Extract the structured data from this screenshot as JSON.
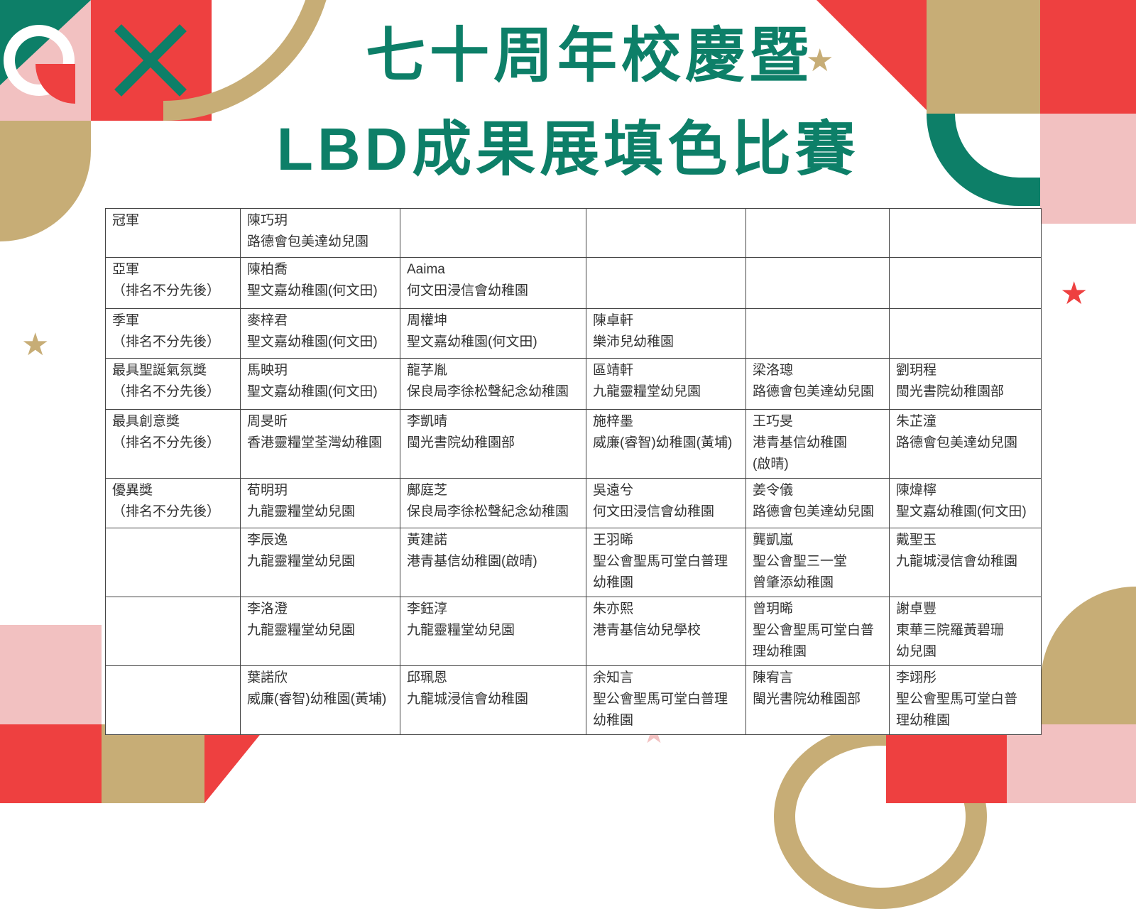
{
  "title": {
    "line1": "七十周年校慶暨",
    "line2": "LBD成果展填色比賽"
  },
  "colors": {
    "green": "#0d7f68",
    "red": "#ee4040",
    "gold": "#c7ad76",
    "pink": "#f2c1c1"
  },
  "rows": [
    {
      "award": "冠軍",
      "cells": [
        "陳巧玥\n路德會包美達幼兒園",
        "",
        "",
        "",
        ""
      ]
    },
    {
      "award": "亞軍\n（排名不分先後）",
      "cells": [
        "陳柏喬\n聖文嘉幼稚園(何文田)",
        "Aaima\n何文田浸信會幼稚園",
        "",
        "",
        ""
      ]
    },
    {
      "award": "季軍\n（排名不分先後）",
      "cells": [
        "麥梓君\n聖文嘉幼稚園(何文田)",
        "周權坤\n聖文嘉幼稚園(何文田)",
        "陳卓軒\n樂沛兒幼稚園",
        "",
        ""
      ]
    },
    {
      "award": "最具聖誕氣氛獎\n（排名不分先後）",
      "cells": [
        "馬映玥\n聖文嘉幼稚園(何文田)",
        "龍芓胤\n保良局李徐松聲紀念幼稚園",
        "區靖軒\n九龍靈糧堂幼兒園",
        "梁洛璁\n路德會包美達幼兒園",
        "劉玥程\n閩光書院幼稚園部"
      ]
    },
    {
      "award": "最具創意獎\n（排名不分先後）",
      "cells": [
        "周旻昕\n香港靈糧堂荃灣幼稚園",
        "李凱晴\n閩光書院幼稚園部",
        "施梓墨\n威廉(睿智)幼稚園(黃埔)",
        "王巧旻\n港青基信幼稚園\n(啟晴)",
        "朱芷潼\n路德會包美達幼兒園"
      ]
    },
    {
      "award": "優異獎\n（排名不分先後）",
      "cells": [
        "荀明玥\n九龍靈糧堂幼兒園",
        "鄺庭芝\n保良局李徐松聲紀念幼稚園",
        "吳遠兮\n何文田浸信會幼稚園",
        "姜令儀\n路德會包美達幼兒園",
        "陳煒檸\n聖文嘉幼稚園(何文田)"
      ]
    },
    {
      "award": "",
      "cells": [
        "李辰逸\n九龍靈糧堂幼兒園",
        "黃建諾\n港青基信幼稚園(啟晴)",
        "王羽晞\n聖公會聖馬可堂白普理\n幼稚園",
        "龔凱嵐\n聖公會聖三一堂\n曾肇添幼稚園",
        "戴聖玉\n九龍城浸信會幼稚園"
      ]
    },
    {
      "award": "",
      "cells": [
        "李洛澄\n九龍靈糧堂幼兒園",
        "李鈺淳\n九龍靈糧堂幼兒園",
        "朱亦熙\n港青基信幼兒學校",
        "曾玥晞\n聖公會聖馬可堂白普\n理幼稚園",
        "謝卓豐\n東華三院羅黃碧珊\n幼兒園"
      ]
    },
    {
      "award": "",
      "cells": [
        "葉諾欣\n威廉(睿智)幼稚園(黃埔)",
        "邱珮恩\n九龍城浸信會幼稚園",
        "余知言\n聖公會聖馬可堂白普理\n幼稚園",
        "陳宥言\n閩光書院幼稚園部",
        "李翊彤\n聖公會聖馬可堂白普\n理幼稚園"
      ]
    }
  ]
}
